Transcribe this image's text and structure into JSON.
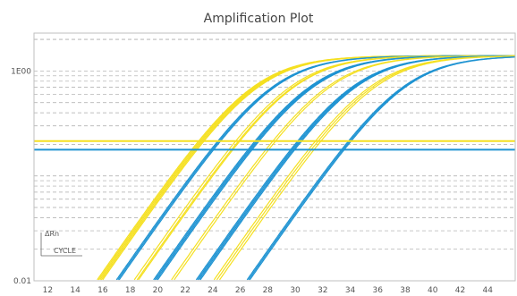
{
  "chart_data": {
    "type": "line",
    "title": "Amplification Plot",
    "yscale": "log",
    "ylim": [
      0.01,
      2.3
    ],
    "xlim": [
      11,
      46
    ],
    "xticks": [
      12,
      14,
      16,
      18,
      20,
      22,
      24,
      26,
      28,
      30,
      32,
      34,
      36,
      38,
      40,
      42,
      44
    ],
    "ytick_labels": [
      "1E00",
      "0.01"
    ],
    "ytick_values": [
      1,
      0.01
    ],
    "axis_legend": {
      "y": "ΔRn",
      "x": "CYCLE"
    },
    "grid": "dashed horizontal",
    "colors": {
      "yellow": "#f5e021",
      "blue": "#1e93d2"
    },
    "thresholds": [
      {
        "color": "yellow",
        "value": 0.215
      },
      {
        "color": "blue",
        "value": 0.178
      }
    ],
    "curve_model": {
      "plateau": 1.4,
      "slope": 2.3
    },
    "curve_groups": [
      {
        "color": "yellow",
        "midpoints": [
          26.9,
          27.0,
          27.1,
          27.2,
          27.3
        ]
      },
      {
        "color": "blue",
        "midpoints": [
          28.3,
          28.4,
          28.5
        ]
      },
      {
        "color": "yellow",
        "midpoints": [
          29.6,
          29.8,
          29.9
        ]
      },
      {
        "color": "blue",
        "midpoints": [
          31.0,
          31.1,
          31.2,
          31.3
        ]
      },
      {
        "color": "yellow",
        "midpoints": [
          32.3,
          32.5
        ]
      },
      {
        "color": "blue",
        "midpoints": [
          34.1,
          34.2,
          34.3,
          34.4
        ]
      },
      {
        "color": "yellow",
        "midpoints": [
          35.4,
          35.6,
          35.8
        ]
      },
      {
        "color": "blue",
        "midpoints": [
          37.8,
          37.9,
          38.0
        ]
      }
    ]
  }
}
